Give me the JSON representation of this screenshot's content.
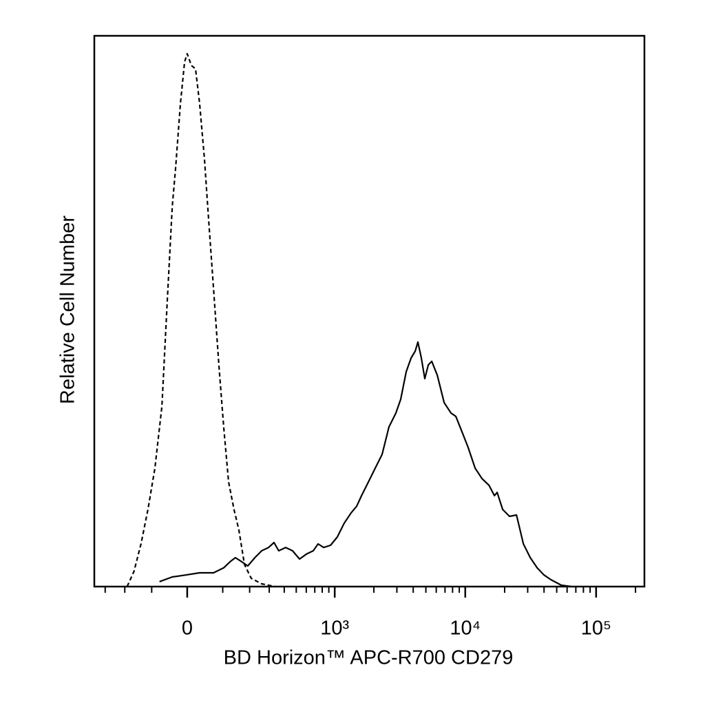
{
  "chart_data": {
    "type": "line",
    "x_label": "BD Horizon™ APC-R700 CD279",
    "y_label": "Relative Cell Number",
    "xscale": "biexponential",
    "xlim": [
      -370,
      234000
    ],
    "ylim": [
      0,
      100
    ],
    "xticks": [
      0,
      {
        "value": 1000,
        "label": "10³"
      },
      {
        "value": 10000,
        "label": "10⁴"
      },
      {
        "value": 100000,
        "label": "10⁵"
      }
    ],
    "xminorticks": [
      -300,
      -200,
      -100,
      100,
      200,
      300,
      400,
      500,
      600,
      700,
      800,
      900,
      2000,
      3000,
      4000,
      5000,
      6000,
      7000,
      8000,
      9000,
      20000,
      30000,
      40000,
      50000,
      60000,
      70000,
      80000,
      90000,
      200000
    ],
    "series": [
      {
        "color": "#000000",
        "dashed": true,
        "x": [
          -190,
          -162,
          -136,
          -112,
          -90,
          -69,
          -54,
          -40,
          -31,
          -18,
          -7,
          0,
          11,
          22,
          33,
          46,
          58,
          72,
          88,
          103,
          119,
          138,
          156,
          178,
          207,
          258,
          338
        ],
        "values": [
          0,
          2.75,
          7.75,
          14,
          21.5,
          32.75,
          51.5,
          69,
          75.9,
          87.75,
          95.25,
          96.75,
          94.6,
          94,
          87.75,
          77.75,
          66.5,
          54,
          40.25,
          29,
          19,
          14,
          10.25,
          4,
          1.5,
          0.5,
          0
        ]
      },
      {
        "color": "#000000",
        "dashed": false,
        "x": [
          -76,
          -40,
          -4,
          33,
          72,
          103,
          126,
          143,
          164,
          192,
          224,
          258,
          296,
          329,
          360,
          411,
          467,
          531,
          602,
          681,
          743,
          821,
          928,
          1047,
          1182,
          1339,
          1476,
          1607,
          1815,
          2049,
          2313,
          2611,
          2949,
          3210,
          3537,
          3852,
          4143,
          4347,
          4619,
          4907,
          5216,
          5543,
          6108,
          6894,
          7785,
          8475,
          9330,
          10530,
          11895,
          13425,
          15165,
          16710,
          17535,
          19320,
          21810,
          24645,
          27810,
          31395,
          35445,
          40005,
          45165,
          54195,
          65040
        ],
        "values": [
          0.9,
          1.75,
          2.1,
          2.5,
          2.5,
          3.4,
          4.6,
          5.25,
          4.6,
          3.75,
          5.25,
          6.5,
          7.1,
          8,
          6.5,
          7.1,
          6.5,
          5,
          5.9,
          6.5,
          7.75,
          7.1,
          7.5,
          9,
          11.5,
          13.4,
          14.6,
          16.5,
          19,
          21.5,
          24,
          29,
          31.5,
          34,
          39,
          41.5,
          42.75,
          44.4,
          41.5,
          37.75,
          40.25,
          40.9,
          38.4,
          33.4,
          31.5,
          30.9,
          28.4,
          25.25,
          21.5,
          19.6,
          18.4,
          16.5,
          17.1,
          14,
          12.75,
          13,
          7.75,
          5.25,
          3.4,
          2.1,
          1.25,
          0.25,
          0
        ]
      }
    ]
  }
}
